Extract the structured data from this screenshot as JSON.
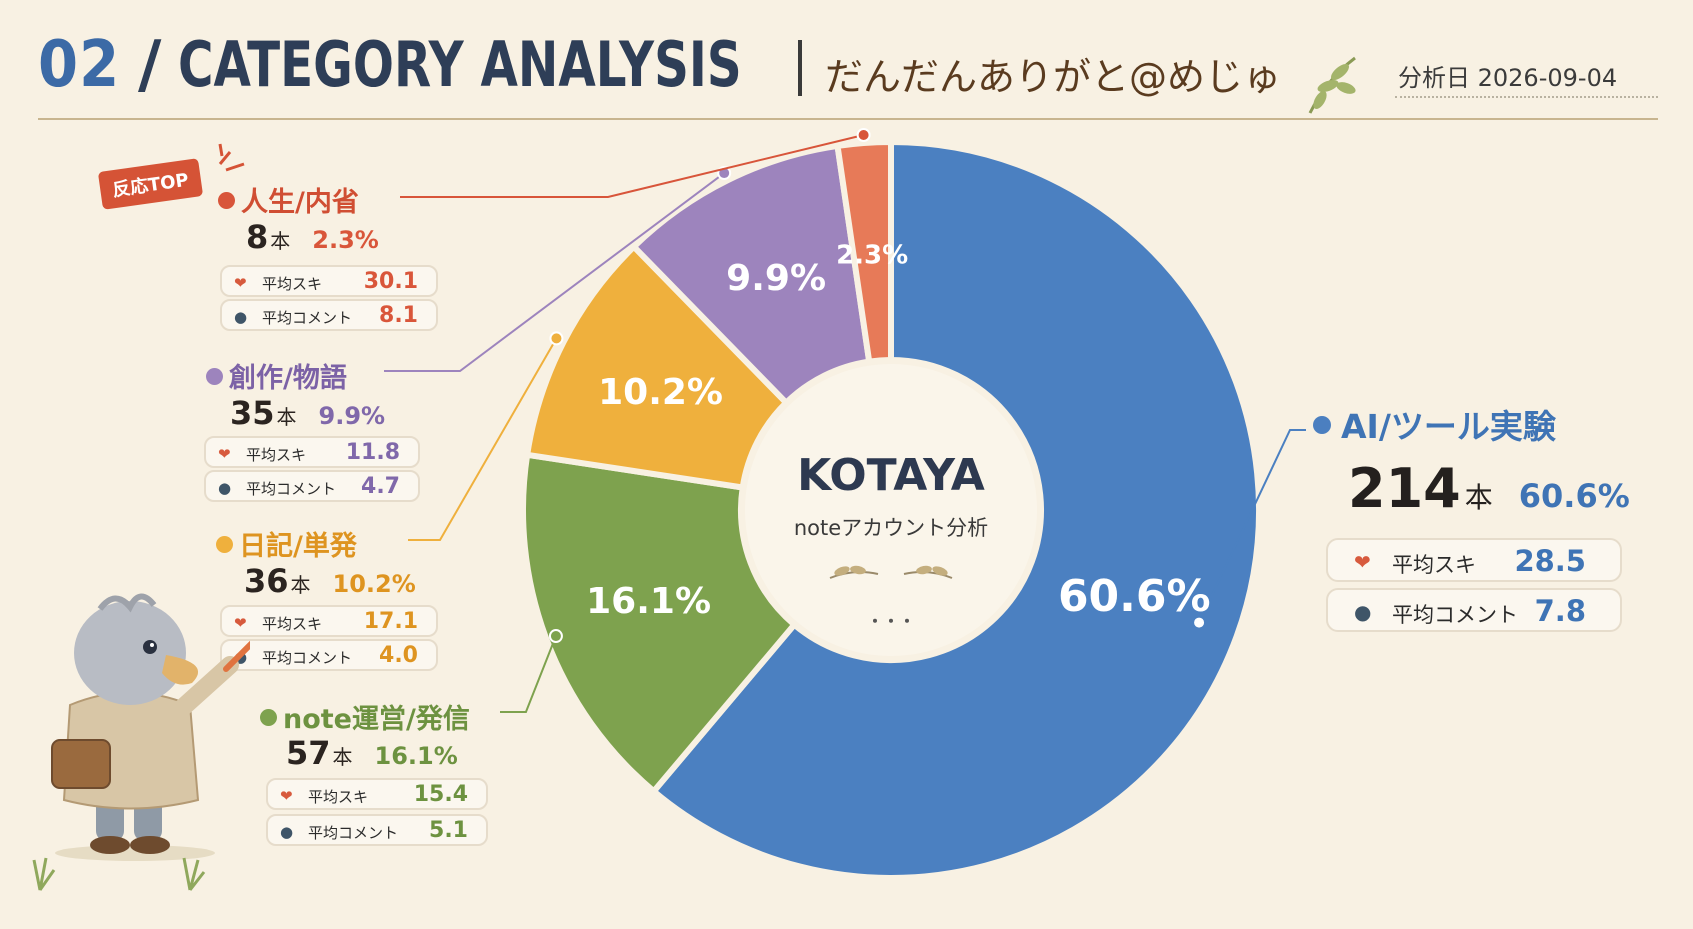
{
  "header": {
    "number": "02",
    "slash": "/",
    "title": "CATEGORY ANALYSIS",
    "subtitle": "だんだんありがと@めじゅ",
    "date": "分析日  2026-09-04"
  },
  "badge": "反応TOP",
  "center": {
    "title": "KOTAYA",
    "subtitle": "noteアカウント分析",
    "dots": "・・・"
  },
  "colors": {
    "ai": "#4b80c1",
    "note": "#7ea24e",
    "diary": "#efb03d",
    "creative": "#9d84bd",
    "life": "#e77a58",
    "heart": "#d75a3d",
    "bubble": "#3f5568"
  },
  "icons": {
    "like": "heart-icon",
    "comment": "speech-bubble-icon",
    "decoration": "leaf-sprig-icon",
    "mascot": "bird-mascot-icon"
  },
  "chart_data": {
    "type": "pie",
    "title": "",
    "slices": [
      {
        "name": "AI/ツール実験",
        "count_value": "214",
        "unit": "本",
        "value": 60.6,
        "label": "60.6%",
        "avg_like_label": "平均スキ",
        "avg_like": "28.5",
        "avg_comment_label": "平均コメント",
        "avg_comment": "7.8"
      },
      {
        "name": "note運営/発信",
        "count_value": "57",
        "unit": "本",
        "value": 16.1,
        "label": "16.1%",
        "avg_like_label": "平均スキ",
        "avg_like": "15.4",
        "avg_comment_label": "平均コメント",
        "avg_comment": "5.1"
      },
      {
        "name": "日記/単発",
        "count_value": "36",
        "unit": "本",
        "value": 10.2,
        "label": "10.2%",
        "avg_like_label": "平均スキ",
        "avg_like": "17.1",
        "avg_comment_label": "平均コメント",
        "avg_comment": "4.0"
      },
      {
        "name": "創作/物語",
        "count_value": "35",
        "unit": "本",
        "value": 9.9,
        "label": "9.9%",
        "avg_like_label": "平均スキ",
        "avg_like": "11.8",
        "avg_comment_label": "平均コメント",
        "avg_comment": "4.7"
      },
      {
        "name": "人生/内省",
        "count_value": "8",
        "unit": "本",
        "value": 2.3,
        "label": "2.3%",
        "avg_like_label": "平均スキ",
        "avg_like": "30.1",
        "avg_comment_label": "平均コメント",
        "avg_comment": "8.1"
      }
    ]
  }
}
